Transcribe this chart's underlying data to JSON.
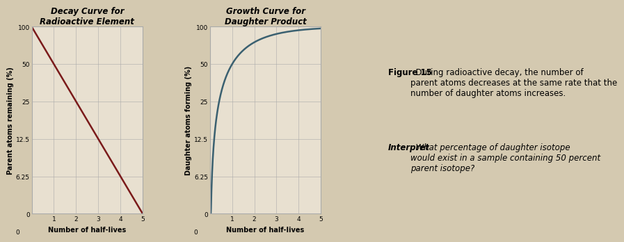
{
  "decay_title": "Decay Curve for\nRadioactive Element",
  "growth_title": "Growth Curve for\nDaughter Product",
  "decay_ylabel": "Parent atoms remaining (%)",
  "growth_ylabel": "Daughter atoms forming (%)",
  "xlabel": "Number of half-lives",
  "ytick_positions": [
    0,
    1,
    2,
    3,
    4,
    5
  ],
  "ytick_labels": [
    "0",
    "6.25",
    "12.5",
    "25",
    "50",
    "100"
  ],
  "ytick_values": [
    0,
    6.25,
    12.5,
    25,
    50,
    100
  ],
  "xtick_labels": [
    "0",
    "1",
    "2",
    "3",
    "4",
    "5"
  ],
  "xlim": [
    0,
    5
  ],
  "ylim": [
    0,
    5
  ],
  "decay_color": "#7a1a1a",
  "growth_color": "#3a6070",
  "bg_color": "#d4c9b0",
  "chart_bg": "#e8e0d0",
  "grid_color": "#aaaaaa",
  "figure15_bold": "Figure 15",
  "figure15_rest": "  During radioactive decay, the number of\nparent atoms decreases at the same rate that the\nnumber of daughter atoms increases.",
  "interpret_bold": "Interpret",
  "interpret_rest": "  What percentage of daughter isotope\nwould exist in a sample containing 50 percent\nparent isotope?",
  "title_fontsize": 8.5,
  "axis_label_fontsize": 7,
  "tick_fontsize": 6.5,
  "caption_fontsize": 8.5
}
